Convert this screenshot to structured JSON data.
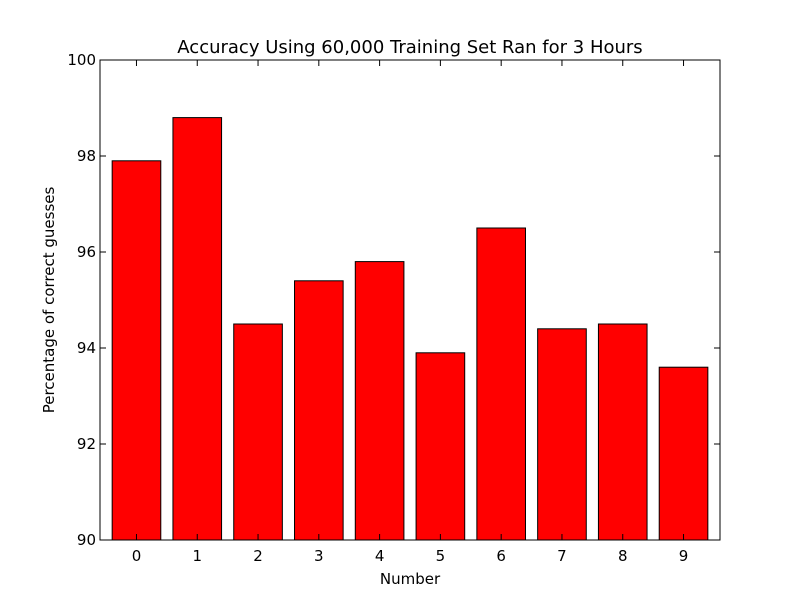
{
  "chart_data": {
    "type": "bar",
    "title": "Accuracy Using 60,000 Training Set Ran for 3 Hours",
    "xlabel": "Number",
    "ylabel": "Percentage of correct guesses",
    "categories": [
      "0",
      "1",
      "2",
      "3",
      "4",
      "5",
      "6",
      "7",
      "8",
      "9"
    ],
    "values": [
      97.9,
      98.8,
      94.5,
      95.4,
      95.8,
      93.9,
      96.5,
      94.4,
      94.5,
      93.6
    ],
    "ylim": [
      90,
      100
    ],
    "yticks": [
      90,
      92,
      94,
      96,
      98,
      100
    ],
    "grid": false,
    "legend": false,
    "bar_color": "#ff0000",
    "edge_color": "#000000"
  }
}
